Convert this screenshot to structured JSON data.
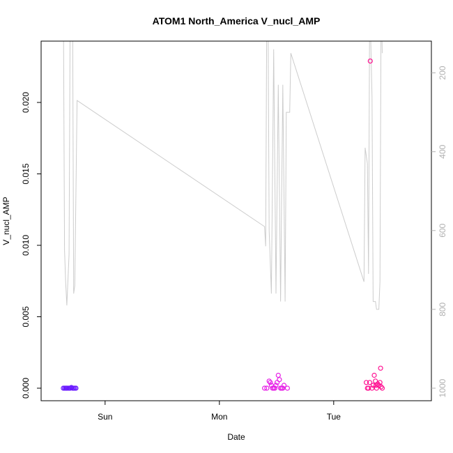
{
  "chart_data": {
    "type": "scatter",
    "title": "ATOM1 North_America V_nucl_AMP",
    "xlabel": "Date",
    "ylabel": "V_nucl_AMP",
    "x_ticks": [
      {
        "value": 0.365,
        "label": "Sun"
      },
      {
        "value": 1.365,
        "label": "Mon"
      },
      {
        "value": 2.365,
        "label": "Tue"
      }
    ],
    "xlim": [
      -0.085,
      3.11
    ],
    "ylim": [
      0,
      0.024
    ],
    "y_ticks": [
      0.0,
      0.005,
      0.01,
      0.015,
      0.02
    ],
    "y_tick_labels": [
      "0.000",
      "0.005",
      "0.010",
      "0.015",
      "0.020"
    ],
    "right_axis": {
      "ylim": [
        1000,
        130
      ],
      "ticks": [
        200,
        400,
        600,
        800,
        1000
      ],
      "color": "#b0b0b0"
    },
    "line_series": {
      "color": "#cccccc",
      "axis": "right",
      "points": [
        [
          0.0,
          0
        ],
        [
          0.01,
          650
        ],
        [
          0.02,
          730
        ],
        [
          0.03,
          790
        ],
        [
          0.05,
          660
        ],
        [
          0.06,
          0
        ],
        [
          0.08,
          0
        ],
        [
          0.09,
          760
        ],
        [
          0.1,
          740
        ],
        [
          0.12,
          270
        ],
        [
          1.76,
          590
        ],
        [
          1.77,
          640
        ],
        [
          1.78,
          0
        ],
        [
          1.79,
          0
        ],
        [
          1.8,
          600
        ],
        [
          1.82,
          760
        ],
        [
          1.84,
          140
        ],
        [
          1.86,
          760
        ],
        [
          1.88,
          230
        ],
        [
          1.9,
          780
        ],
        [
          1.92,
          230
        ],
        [
          1.94,
          780
        ],
        [
          1.95,
          300
        ],
        [
          1.98,
          300
        ],
        [
          1.99,
          150
        ],
        [
          2.63,
          730
        ],
        [
          2.64,
          390
        ],
        [
          2.66,
          430
        ],
        [
          2.67,
          710
        ],
        [
          2.68,
          0
        ],
        [
          2.7,
          260
        ],
        [
          2.71,
          780
        ],
        [
          2.73,
          780
        ],
        [
          2.74,
          800
        ],
        [
          2.76,
          800
        ],
        [
          2.77,
          730
        ],
        [
          2.78,
          0
        ],
        [
          2.79,
          150
        ]
      ]
    },
    "point_series": [
      {
        "color": "#6a1aff",
        "points": [
          [
            0.0,
            0
          ],
          [
            0.01,
            0
          ],
          [
            0.02,
            0
          ],
          [
            0.025,
            0
          ],
          [
            0.03,
            0
          ],
          [
            0.04,
            0
          ],
          [
            0.05,
            0
          ],
          [
            0.06,
            0
          ],
          [
            0.07,
            5e-05
          ],
          [
            0.08,
            0
          ],
          [
            0.09,
            0
          ],
          [
            0.1,
            0
          ],
          [
            0.11,
            0
          ]
        ]
      },
      {
        "color": "#e61ee6",
        "points": [
          [
            1.76,
            0
          ],
          [
            1.78,
            0
          ],
          [
            1.8,
            0.0005
          ],
          [
            1.81,
            0.0004
          ],
          [
            1.82,
            0.0002
          ],
          [
            1.83,
            0
          ],
          [
            1.84,
            0
          ],
          [
            1.85,
            0
          ],
          [
            1.86,
            0.0002
          ],
          [
            1.87,
            0.0004
          ],
          [
            1.88,
            0.0009
          ],
          [
            1.89,
            0.0006
          ],
          [
            1.9,
            0
          ],
          [
            1.91,
            0
          ],
          [
            1.92,
            0
          ],
          [
            1.93,
            0.0002
          ],
          [
            1.96,
            0
          ]
        ]
      },
      {
        "color": "#ff1493",
        "points": [
          [
            2.65,
            0.0004
          ],
          [
            2.66,
            0
          ],
          [
            2.67,
            0
          ],
          [
            2.68,
            0.0004
          ],
          [
            2.685,
            0.0229
          ],
          [
            2.7,
            0
          ],
          [
            2.71,
            0.0002
          ],
          [
            2.72,
            0.0009
          ],
          [
            2.73,
            0.0005
          ],
          [
            2.735,
            0.0002
          ],
          [
            2.74,
            0
          ],
          [
            2.75,
            0.0003
          ],
          [
            2.76,
            0.0002
          ],
          [
            2.77,
            0.0004
          ],
          [
            2.775,
            0.0014
          ],
          [
            2.78,
            0.0001
          ],
          [
            2.79,
            0
          ]
        ]
      }
    ]
  }
}
